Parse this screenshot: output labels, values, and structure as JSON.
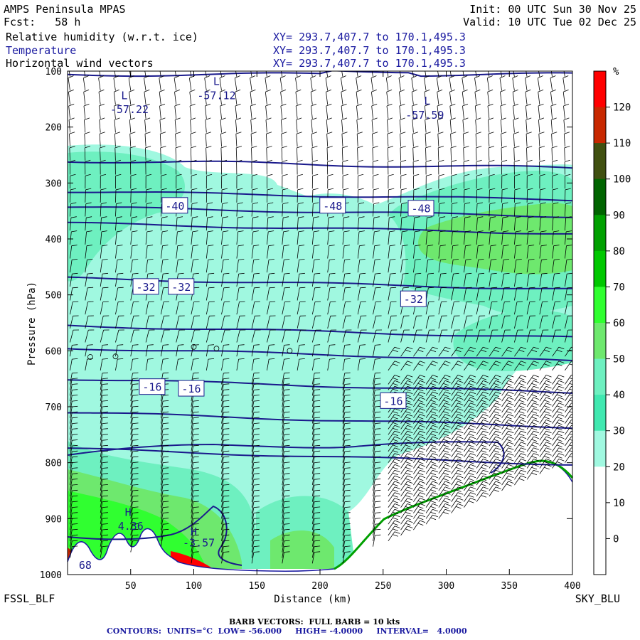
{
  "header": {
    "model": "AMPS Peninsula MPAS",
    "fcst": "Fcst:   58 h",
    "init": "Init: 00 UTC Sun 30 Nov 25",
    "valid": "Valid: 10 UTC Tue 02 Dec 25",
    "fields": [
      {
        "name": "Relative humidity (w.r.t. ice)",
        "xy": "XY= 293.7,407.7 to 170.1,495.3",
        "color": "#000000"
      },
      {
        "name": "Temperature",
        "xy": "XY= 293.7,407.7 to 170.1,495.3",
        "color": "#1a1aa0"
      },
      {
        "name": "Horizontal wind vectors",
        "xy": "XY= 293.7,407.7 to 170.1,495.3",
        "color": "#000000"
      }
    ]
  },
  "stations": {
    "left": "FSSL_BLF",
    "right": "SKY_BLU"
  },
  "footer": {
    "barb": "BARB VECTORS:  FULL BARB = 10 kts",
    "contours": "CONTOURS:  UNITS=°C  LOW= -56.000     HIGH= -4.0000     INTERVAL=   4.0000"
  },
  "colorbar": {
    "unit": "%",
    "ticks": [
      "120",
      "110",
      "100",
      "90",
      "80",
      "70",
      "60",
      "50",
      "40",
      "30",
      "20",
      "10",
      "0"
    ],
    "colors": [
      "#ff0000",
      "#c82800",
      "#405010",
      "#006400",
      "#00a000",
      "#00c800",
      "#30ff30",
      "#6ee86e",
      "#6ef0c0",
      "#40e8b0",
      "#a0f8e0",
      "#ffffff",
      "#ffffff",
      "#ffffff"
    ]
  },
  "chart_data": {
    "type": "cross-section",
    "xlabel": "Distance (km)",
    "ylabel": "Pressure (hPa)",
    "xlim": [
      0,
      400
    ],
    "ylim": [
      1000,
      100
    ],
    "xticks": [
      50,
      100,
      150,
      200,
      250,
      300,
      350,
      400
    ],
    "yticks": [
      100,
      200,
      300,
      400,
      500,
      600,
      700,
      800,
      900,
      1000
    ],
    "contour_labels": [
      {
        "text": "-40",
        "x": 85,
        "p": 340
      },
      {
        "text": "-48",
        "x": 210,
        "p": 340
      },
      {
        "text": "-48",
        "x": 280,
        "p": 345
      },
      {
        "text": "-32",
        "x": 62,
        "p": 485
      },
      {
        "text": "-32",
        "x": 90,
        "p": 485
      },
      {
        "text": "-32",
        "x": 274,
        "p": 507
      },
      {
        "text": "-16",
        "x": 67,
        "p": 664
      },
      {
        "text": "-16",
        "x": 98,
        "p": 667
      },
      {
        "text": "-16",
        "x": 258,
        "p": 689
      }
    ],
    "extrema": [
      {
        "text": "L",
        "x": 118,
        "p": 125
      },
      {
        "text": "-57.12",
        "x": 118,
        "p": 150
      },
      {
        "text": "L",
        "x": 45,
        "p": 150
      },
      {
        "text": "-57.22",
        "x": 49,
        "p": 175
      },
      {
        "text": "L",
        "x": 285,
        "p": 160
      },
      {
        "text": "-57.59",
        "x": 283,
        "p": 185
      },
      {
        "text": "H",
        "x": 48,
        "p": 895
      },
      {
        "text": "4.36",
        "x": 50,
        "p": 920
      },
      {
        "text": "H",
        "x": 100,
        "p": 930
      },
      {
        "text": "-3.57",
        "x": 104,
        "p": 950
      },
      {
        "text": "68",
        "x": 14,
        "p": 990
      }
    ],
    "isotherms_p_at_x0": [
      106,
      260,
      315,
      343,
      372,
      470,
      555,
      595,
      650,
      710,
      775
    ]
  }
}
